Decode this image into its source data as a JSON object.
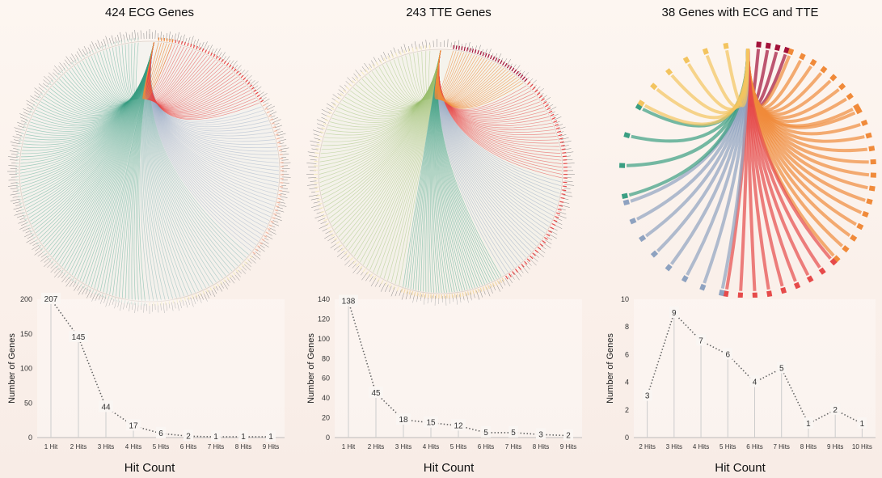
{
  "panels": [
    {
      "title": "424 ECG Genes",
      "chart_data": {
        "type": "line",
        "categories": [
          "1 Hit",
          "2 Hits",
          "3 Hits",
          "4 Hits",
          "5 Hits",
          "6 Hits",
          "7 Hits",
          "8 Hits",
          "9 Hits"
        ],
        "values": [
          207,
          145,
          44,
          17,
          6,
          2,
          1,
          1,
          1
        ],
        "ylabel": "Number of Genes",
        "xlabel": "Hit Count",
        "ylim": [
          0,
          200
        ],
        "yticks": [
          0,
          50,
          100,
          150,
          200
        ]
      }
    },
    {
      "title": "243 TTE Genes",
      "chart_data": {
        "type": "line",
        "categories": [
          "1 Hit",
          "2 Hits",
          "3 Hits",
          "4 Hits",
          "5 Hits",
          "6 Hits",
          "7 Hits",
          "8 Hits",
          "9 Hits"
        ],
        "values": [
          138,
          45,
          18,
          15,
          12,
          5,
          5,
          3,
          2
        ],
        "ylabel": "Number of Genes",
        "xlabel": "Hit Count",
        "ylim": [
          0,
          140
        ],
        "yticks": [
          0,
          20,
          40,
          60,
          80,
          100,
          120,
          140
        ]
      }
    },
    {
      "title": "38 Genes with ECG and TTE",
      "chart_data": {
        "type": "line",
        "categories": [
          "2 Hits",
          "3 Hits",
          "4 Hits",
          "5 Hits",
          "6 Hits",
          "7 Hits",
          "8 Hits",
          "9 Hits",
          "10 Hits"
        ],
        "values": [
          3,
          9,
          7,
          6,
          4,
          5,
          1,
          2,
          1
        ],
        "ylabel": "Number of Genes",
        "xlabel": "Hit Count",
        "ylim": [
          0,
          10
        ],
        "yticks": [
          0,
          2,
          4,
          6,
          8,
          10
        ]
      }
    }
  ],
  "colors": {
    "green": "#3a9e82",
    "teal": "#6aa6a6",
    "olive": "#9cc070",
    "blue": "#8ea2c0",
    "red": "#e64a4a",
    "orange": "#f08a3a",
    "yellow": "#f3c45f",
    "crimson": "#a3123a",
    "pale": "#f5ecc4",
    "axis": "#bbbbbb",
    "dots": "#666666"
  }
}
